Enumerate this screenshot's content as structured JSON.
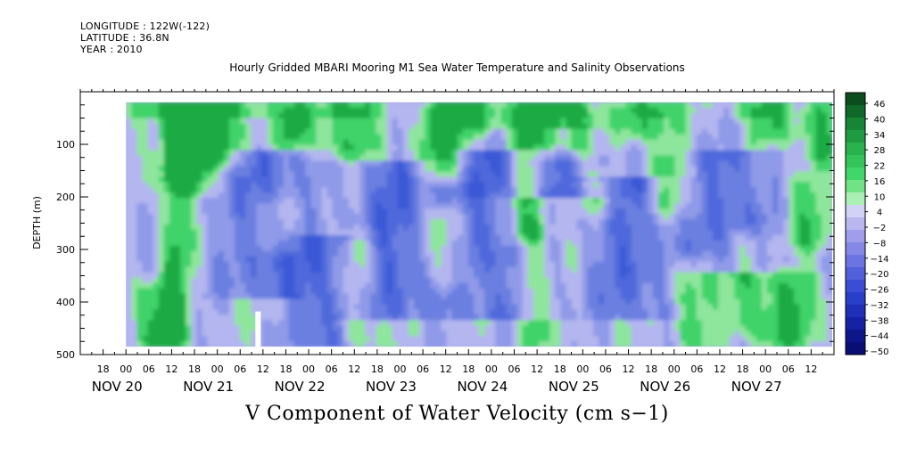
{
  "header": {
    "longitude": "LONGITUDE : 122W(-122)",
    "latitude": "LATITUDE : 36.8N",
    "year": "YEAR : 2010"
  },
  "chart_data": {
    "type": "heatmap",
    "title": "Hourly Gridded MBARI Mooring M1 Sea Water Temperature and Salinity Observations",
    "variable_label": "V Component of Water Velocity (cm s−1)",
    "ylabel": "DEPTH (m)",
    "y_range": [
      500,
      0
    ],
    "y_ticks": [
      "100",
      "200",
      "300",
      "400",
      "500"
    ],
    "x_range": [
      "Nov 19 12:00",
      "Nov 27 18:00"
    ],
    "x_hour_ticks": [
      "18",
      "00",
      "06",
      "12",
      "18",
      "00",
      "06",
      "12",
      "18",
      "00",
      "06",
      "12",
      "18",
      "00",
      "06",
      "12",
      "18",
      "00",
      "06",
      "12",
      "18",
      "00",
      "06",
      "12",
      "18",
      "00",
      "06",
      "12",
      "18",
      "00",
      "06",
      "12"
    ],
    "x_day_labels": [
      "NOV 20",
      "NOV 21",
      "NOV 22",
      "NOV 23",
      "NOV 24",
      "NOV 25",
      "NOV 26",
      "NOV 27"
    ],
    "colorbar_labels": [
      "46",
      "40",
      "34",
      "28",
      "22",
      "16",
      "10",
      "4",
      "−2",
      "−8",
      "−14",
      "−20",
      "−26",
      "−32",
      "−38",
      "−44",
      "−50"
    ],
    "colorbar_range": [
      -50,
      50
    ],
    "colors": {
      "negative": "#2f5bdc",
      "near_zero": "#b9b6f0",
      "positive": "#3ed66a",
      "strong_positive": "#0a8a2a"
    },
    "data_extent": {
      "depth_top_m": 20,
      "depth_bottom_m": 485,
      "time_start": "Nov 20 00:00"
    }
  }
}
